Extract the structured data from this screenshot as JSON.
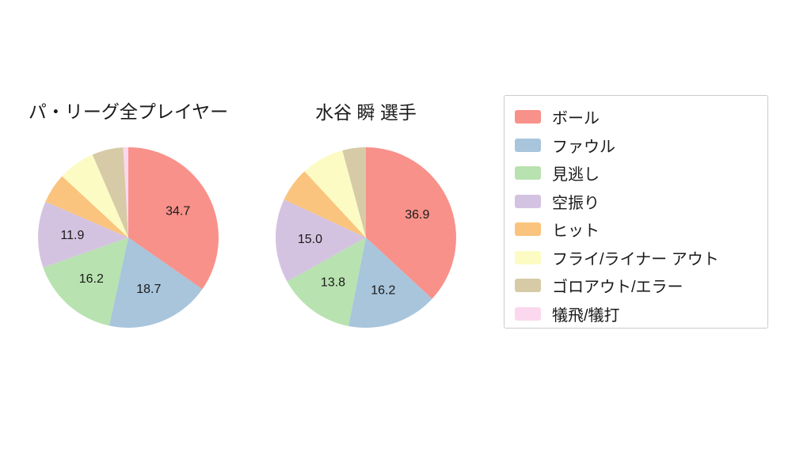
{
  "chart_data": [
    {
      "type": "pie",
      "title": "パ・リーグ全プレイヤー",
      "start_angle": "top",
      "direction": "clockwise",
      "value_unit": "percent",
      "label_position_radius": 0.62,
      "slices": [
        {
          "category": "ボール",
          "value": 34.7,
          "labeled": true
        },
        {
          "category": "ファウル",
          "value": 18.7,
          "labeled": true
        },
        {
          "category": "見逃し",
          "value": 16.2,
          "labeled": true
        },
        {
          "category": "空振り",
          "value": 11.9,
          "labeled": true
        },
        {
          "category": "ヒット",
          "value": 5.4,
          "labeled": false
        },
        {
          "category": "フライ/ライナー アウト",
          "value": 6.6,
          "labeled": false
        },
        {
          "category": "ゴロアウト/エラー",
          "value": 5.6,
          "labeled": false
        },
        {
          "category": "犠飛/犠打",
          "value": 0.9,
          "labeled": false
        }
      ]
    },
    {
      "type": "pie",
      "title": "水谷 瞬 選手",
      "start_angle": "top",
      "direction": "clockwise",
      "value_unit": "percent",
      "label_position_radius": 0.62,
      "slices": [
        {
          "category": "ボール",
          "value": 36.9,
          "labeled": true
        },
        {
          "category": "ファウル",
          "value": 16.2,
          "labeled": true
        },
        {
          "category": "見逃し",
          "value": 13.8,
          "labeled": true
        },
        {
          "category": "空振り",
          "value": 15.0,
          "labeled": true
        },
        {
          "category": "ヒット",
          "value": 6.2,
          "labeled": false
        },
        {
          "category": "フライ/ライナー アウト",
          "value": 7.7,
          "labeled": false
        },
        {
          "category": "ゴロアウト/エラー",
          "value": 4.2,
          "labeled": false
        },
        {
          "category": "犠飛/犠打",
          "value": 0.0,
          "labeled": false
        }
      ]
    }
  ],
  "legend": {
    "items": [
      {
        "label": "ボール",
        "color": "#f8918a"
      },
      {
        "label": "ファウル",
        "color": "#a8c5dc"
      },
      {
        "label": "見逃し",
        "color": "#b8e2b0"
      },
      {
        "label": "空振り",
        "color": "#d4c3e0"
      },
      {
        "label": "ヒット",
        "color": "#fac47e"
      },
      {
        "label": "フライ/ライナー アウト",
        "color": "#fcfbc4"
      },
      {
        "label": "ゴロアウト/エラー",
        "color": "#d6cba6"
      },
      {
        "label": "犠飛/犠打",
        "color": "#fcd8ee"
      }
    ]
  },
  "figure": {
    "background": "#ffffff",
    "text_color": "#1a1a1a"
  }
}
